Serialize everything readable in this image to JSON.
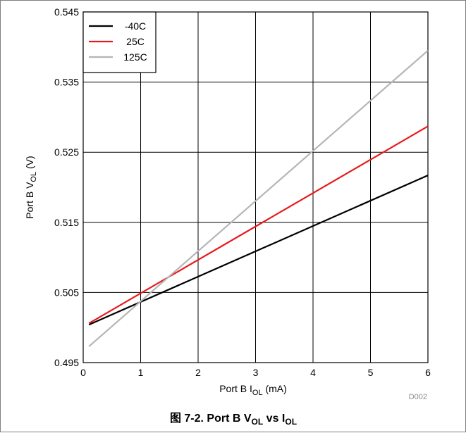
{
  "figure": {
    "caption_prefix": "图 7-2. Port B V",
    "caption_sub1": "OL",
    "caption_mid": " vs I",
    "caption_sub2": "OL",
    "code": "D002"
  },
  "chart_data": {
    "type": "line",
    "xlabel_prefix": "Port B I",
    "xlabel_sub": "OL",
    "xlabel_suffix": " (mA)",
    "ylabel_prefix": "Port B V",
    "ylabel_sub": "OL",
    "ylabel_suffix": " (V)",
    "xlim": [
      0,
      6
    ],
    "ylim": [
      0.495,
      0.545
    ],
    "xticks": [
      "0",
      "1",
      "2",
      "3",
      "4",
      "5",
      "6"
    ],
    "yticks": [
      "0.495",
      "0.505",
      "0.515",
      "0.525",
      "0.535",
      "0.545"
    ],
    "xtick_values": [
      0,
      1,
      2,
      3,
      4,
      5,
      6
    ],
    "ytick_values": [
      0.495,
      0.505,
      0.515,
      0.525,
      0.535,
      0.545
    ],
    "grid": true,
    "legend_position": "top-left",
    "series": [
      {
        "name": "-40C",
        "color": "#000000",
        "x": [
          0.1,
          6
        ],
        "y": [
          0.5004,
          0.5217
        ]
      },
      {
        "name": "25C",
        "color": "#e8191c",
        "x": [
          0.1,
          6
        ],
        "y": [
          0.5006,
          0.5287
        ]
      },
      {
        "name": "125C",
        "color": "#b5b5b5",
        "x": [
          0.1,
          6
        ],
        "y": [
          0.4973,
          0.5395
        ]
      }
    ]
  }
}
